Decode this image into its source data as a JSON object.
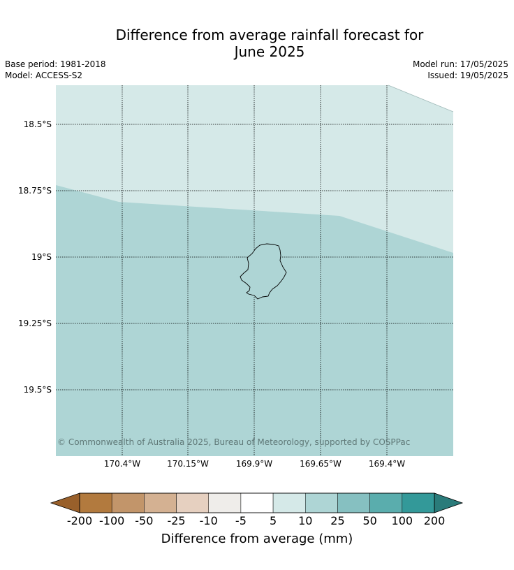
{
  "title_line1": "Difference from average rainfall forecast for",
  "title_line2": "June 2025",
  "meta": {
    "base_period": "Base period: 1981-2018",
    "model": "Model: ACCESS-S2",
    "model_run": "Model run: 17/05/2025",
    "issued": "Issued: 19/05/2025"
  },
  "map": {
    "lat_labels": [
      "18.5°S",
      "18.75°S",
      "19°S",
      "19.25°S",
      "19.5°S"
    ],
    "lon_labels": [
      "170.4°W",
      "170.15°W",
      "169.9°W",
      "169.65°W",
      "169.4°W"
    ],
    "copyright": "© Commonwealth of Australia 2025, Bureau of Meteorology, supported by COSPPac",
    "category_colors": {
      "10_to_25": "#d5e9e8",
      "25_to_50": "#aed5d5"
    }
  },
  "colorbar": {
    "title": "Difference from average (mm)",
    "labels": [
      "-200",
      "-100",
      "-50",
      "-25",
      "-10",
      "-5",
      "5",
      "10",
      "25",
      "50",
      "100",
      "200"
    ],
    "colors": [
      "#99602b",
      "#b27a3e",
      "#c2956a",
      "#d4b192",
      "#e6d0c0",
      "#efedea",
      "#ffffff",
      "#d5e9e8",
      "#aed5d5",
      "#86c0c1",
      "#5aadad",
      "#339999",
      "#2a7b7a"
    ]
  }
}
